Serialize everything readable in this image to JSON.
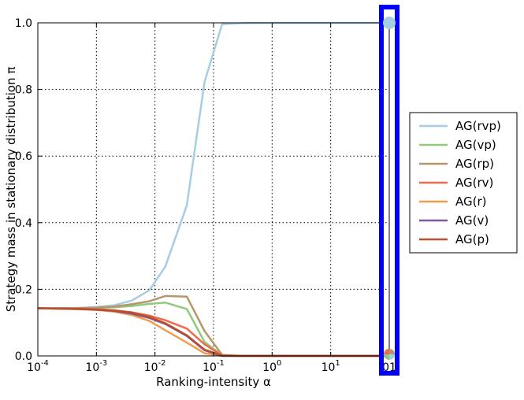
{
  "chart_data": {
    "type": "line",
    "xscale": "log",
    "xlabel": "Ranking-intensity α",
    "ylabel": "Strategy mass in stationary distribution π",
    "xlim": [
      0.0001,
      100
    ],
    "ylim": [
      0.0,
      1.0
    ],
    "grid": true,
    "legend_position": "right",
    "x_ticks": [
      {
        "value": 0.0001,
        "base": "10",
        "exp": "-4"
      },
      {
        "value": 0.001,
        "base": "10",
        "exp": "-3"
      },
      {
        "value": 0.01,
        "base": "10",
        "exp": "-2"
      },
      {
        "value": 0.1,
        "base": "10",
        "exp": "-1"
      },
      {
        "value": 1,
        "base": "10",
        "exp": "0"
      },
      {
        "value": 10,
        "base": "10",
        "exp": "1"
      },
      {
        "value": 100,
        "base": "",
        "exp": "01"
      }
    ],
    "y_ticks": [
      "0.0",
      "0.2",
      "0.4",
      "0.6",
      "0.8",
      "1.0"
    ],
    "y_tick_values": [
      0.0,
      0.2,
      0.4,
      0.6,
      0.8,
      1.0
    ],
    "x": [
      0.0001,
      0.0002,
      0.0005,
      0.001,
      0.002,
      0.004,
      0.008,
      0.015,
      0.035,
      0.07,
      0.14,
      0.3,
      1,
      3,
      10,
      30,
      100
    ],
    "series": [
      {
        "name": "AG(rvp)",
        "color": "#a6cee3",
        "values": [
          0.143,
          0.143,
          0.144,
          0.147,
          0.152,
          0.166,
          0.197,
          0.268,
          0.452,
          0.822,
          0.996,
          0.999,
          1.0,
          1.0,
          1.0,
          1.0,
          1.0
        ]
      },
      {
        "name": "AG(vp)",
        "color": "#8fca7e",
        "values": [
          0.143,
          0.143,
          0.143,
          0.144,
          0.146,
          0.15,
          0.156,
          0.16,
          0.141,
          0.042,
          0.002,
          0.0,
          0.0,
          0.0,
          0.0,
          0.0,
          0.0
        ]
      },
      {
        "name": "AG(rp)",
        "color": "#b8966c",
        "values": [
          0.143,
          0.143,
          0.144,
          0.145,
          0.148,
          0.155,
          0.164,
          0.18,
          0.178,
          0.075,
          0.003,
          0.0,
          0.0,
          0.0,
          0.0,
          0.0,
          0.0
        ]
      },
      {
        "name": "AG(rv)",
        "color": "#ef6b4c",
        "values": [
          0.143,
          0.142,
          0.141,
          0.14,
          0.137,
          0.131,
          0.121,
          0.107,
          0.082,
          0.035,
          0.001,
          0.0,
          0.0,
          0.0,
          0.0,
          0.0,
          0.0
        ]
      },
      {
        "name": "AG(r)",
        "color": "#f29c4e",
        "values": [
          0.143,
          0.142,
          0.14,
          0.138,
          0.133,
          0.123,
          0.105,
          0.077,
          0.04,
          0.008,
          0.0,
          0.0,
          0.0,
          0.0,
          0.0,
          0.0,
          0.0
        ]
      },
      {
        "name": "AG(v)",
        "color": "#7a58a3",
        "values": [
          0.143,
          0.142,
          0.141,
          0.139,
          0.135,
          0.127,
          0.114,
          0.096,
          0.06,
          0.017,
          0.0,
          0.0,
          0.0,
          0.0,
          0.0,
          0.0,
          0.0
        ]
      },
      {
        "name": "AG(p)",
        "color": "#b8502d",
        "values": [
          0.143,
          0.142,
          0.141,
          0.139,
          0.136,
          0.13,
          0.117,
          0.098,
          0.062,
          0.019,
          0.001,
          0.0,
          0.0,
          0.0,
          0.0,
          0.0,
          0.0
        ]
      }
    ],
    "highlight": {
      "x": 100,
      "color": "#0000ff",
      "marker_color": "#a6cee3",
      "marker_y": 1.0,
      "bottom_marker_colors": [
        "#a6cee3",
        "#8fca7e",
        "#ef6b4c",
        "#b8966c"
      ]
    }
  }
}
